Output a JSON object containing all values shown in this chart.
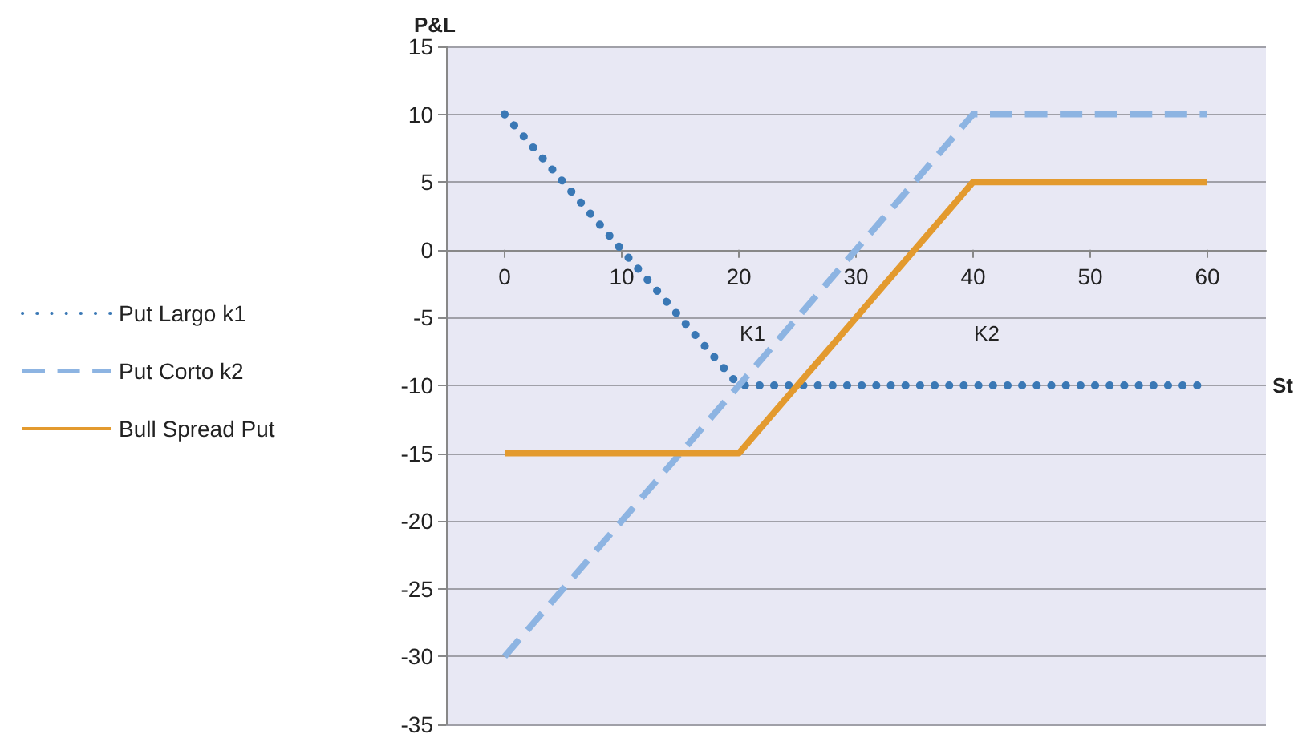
{
  "chart_data": {
    "type": "line",
    "xlabel": "St",
    "ylabel": "P&L",
    "xlim": [
      -5,
      65
    ],
    "xticks": [
      0,
      10,
      20,
      30,
      40,
      50,
      60
    ],
    "ylim": [
      -35,
      15
    ],
    "yticks": [
      -35,
      -30,
      -25,
      -20,
      -15,
      -10,
      -5,
      0,
      5,
      10,
      15
    ],
    "grid": "y",
    "legend": "left",
    "series": [
      {
        "name": "Put Largo k1",
        "color": "#3a78b5",
        "line_style": "dotted",
        "x": [
          0,
          20,
          60
        ],
        "values": [
          10,
          -10,
          -10
        ]
      },
      {
        "name": "Put Corto k2",
        "color": "#8db4e2",
        "line_style": "dashed",
        "x": [
          0,
          40,
          60
        ],
        "values": [
          -30,
          10,
          10
        ]
      },
      {
        "name": "Bull Spread Put",
        "color": "#e39a2e",
        "line_style": "solid",
        "x": [
          0,
          20,
          40,
          60
        ],
        "values": [
          -15,
          -15,
          5,
          5
        ]
      }
    ],
    "annotations": [
      "K1",
      "K2"
    ]
  }
}
